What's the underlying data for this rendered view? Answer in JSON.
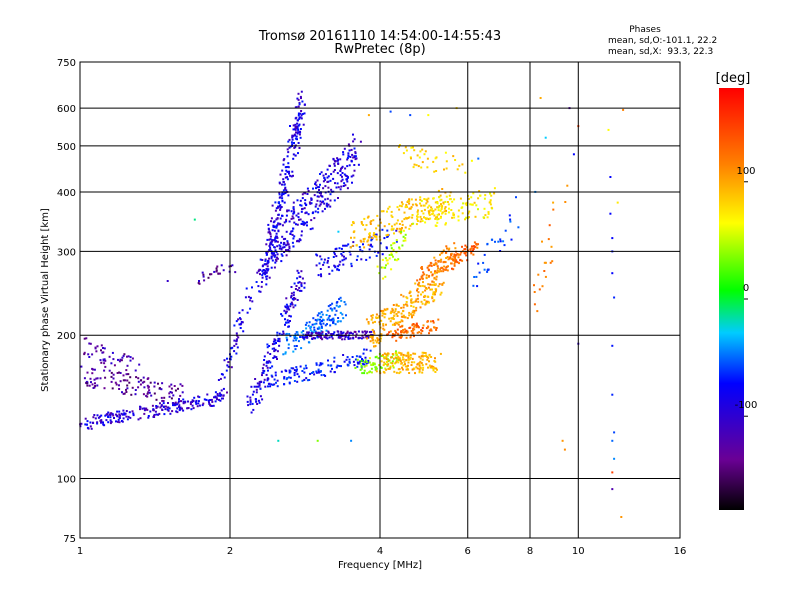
{
  "chart_data": {
    "type": "scatter",
    "title": "Tromsø 20161110 14:54:00-14:55:43",
    "subtitle": "RwPretec (8p)",
    "xlabel": "Frequency [MHz]",
    "ylabel": "Stationary phase Virtual Height [km]",
    "x_scale": "log",
    "y_scale": "log",
    "xlim": [
      1,
      16
    ],
    "ylim": [
      75,
      750
    ],
    "x_ticks": [
      1,
      2,
      4,
      6,
      8,
      10,
      16
    ],
    "y_ticks": [
      75,
      100,
      200,
      300,
      400,
      500,
      600,
      750
    ],
    "grid": true,
    "phase_stats": {
      "heading": "Phases",
      "line_o": "mean, sd,O:-101.1, 22.2",
      "line_x": "mean, sd,X:  93.3, 22.3"
    },
    "colorbar": {
      "label": "[deg]",
      "range": [
        -180,
        180
      ],
      "ticks": [
        -100,
        0,
        100
      ],
      "colormap": "rainbow"
    },
    "clusters": [
      {
        "from": [
          1.0,
          130
        ],
        "to": [
          1.95,
          148
        ],
        "spread": 6,
        "phase": -115,
        "count": 220
      },
      {
        "from": [
          1.0,
          165
        ],
        "to": [
          1.6,
          150
        ],
        "spread": 10,
        "phase": -135,
        "count": 120
      },
      {
        "from": [
          1.0,
          190
        ],
        "to": [
          1.3,
          170
        ],
        "spread": 10,
        "phase": -130,
        "count": 50
      },
      {
        "from": [
          1.7,
          260
        ],
        "to": [
          2.05,
          280
        ],
        "spread": 6,
        "phase": -135,
        "count": 25
      },
      {
        "from": [
          1.9,
          150
        ],
        "to": [
          2.2,
          250
        ],
        "spread": 8,
        "phase": -110,
        "count": 60
      },
      {
        "from": [
          2.3,
          250
        ],
        "to": [
          2.8,
          620
        ],
        "spread": 14,
        "phase": -110,
        "count": 260
      },
      {
        "from": [
          2.4,
          300
        ],
        "to": [
          3.6,
          480
        ],
        "spread": 20,
        "phase": -112,
        "count": 320
      },
      {
        "from": [
          2.2,
          140
        ],
        "to": [
          2.8,
          270
        ],
        "spread": 10,
        "phase": -110,
        "count": 160
      },
      {
        "from": [
          2.6,
          190
        ],
        "to": [
          3.4,
          230
        ],
        "spread": 10,
        "phase": -70,
        "count": 140
      },
      {
        "from": [
          2.4,
          160
        ],
        "to": [
          3.8,
          180
        ],
        "spread": 8,
        "phase": -95,
        "count": 130
      },
      {
        "from": [
          2.8,
          200
        ],
        "to": [
          3.9,
          200
        ],
        "spread": 4,
        "phase": -120,
        "count": 120
      },
      {
        "from": [
          3.0,
          280
        ],
        "to": [
          4.3,
          320
        ],
        "spread": 12,
        "phase": -100,
        "count": 90
      },
      {
        "from": [
          3.6,
          170
        ],
        "to": [
          4.4,
          180
        ],
        "spread": 8,
        "phase": 35,
        "count": 70
      },
      {
        "from": [
          4.0,
          175
        ],
        "to": [
          5.2,
          175
        ],
        "spread": 10,
        "phase": 95,
        "count": 150
      },
      {
        "from": [
          3.8,
          200
        ],
        "to": [
          5.3,
          260
        ],
        "spread": 14,
        "phase": 100,
        "count": 220
      },
      {
        "from": [
          4.2,
          200
        ],
        "to": [
          5.2,
          210
        ],
        "spread": 6,
        "phase": 130,
        "count": 80
      },
      {
        "from": [
          4.8,
          260
        ],
        "to": [
          5.6,
          300
        ],
        "spread": 10,
        "phase": 120,
        "count": 90
      },
      {
        "from": [
          5.5,
          280
        ],
        "to": [
          6.2,
          310
        ],
        "spread": 6,
        "phase": 135,
        "count": 70
      },
      {
        "from": [
          3.5,
          320
        ],
        "to": [
          5.6,
          390
        ],
        "spread": 14,
        "phase": 90,
        "count": 170
      },
      {
        "from": [
          4.8,
          360
        ],
        "to": [
          6.8,
          380
        ],
        "spread": 14,
        "phase": 70,
        "count": 120
      },
      {
        "from": [
          4.4,
          480
        ],
        "to": [
          6.0,
          450
        ],
        "spread": 10,
        "phase": 80,
        "count": 40
      },
      {
        "from": [
          4.0,
          270
        ],
        "to": [
          4.6,
          330
        ],
        "spread": 10,
        "phase": 45,
        "count": 40
      },
      {
        "from": [
          6.0,
          250
        ],
        "to": [
          7.5,
          350
        ],
        "spread": 12,
        "phase": -80,
        "count": 30
      },
      {
        "from": [
          8.0,
          230
        ],
        "to": [
          9.5,
          400
        ],
        "spread": 20,
        "phase": 120,
        "count": 20
      }
    ],
    "scattered_points": [
      [
        11.6,
        430,
        -100
      ],
      [
        11.6,
        360,
        -100
      ],
      [
        11.7,
        320,
        -100
      ],
      [
        11.7,
        300,
        -95
      ],
      [
        11.7,
        270,
        -100
      ],
      [
        11.8,
        240,
        -90
      ],
      [
        11.7,
        190,
        -95
      ],
      [
        11.7,
        150,
        -90
      ],
      [
        11.8,
        125,
        -80
      ],
      [
        11.7,
        120,
        -70
      ],
      [
        11.8,
        110,
        -60
      ],
      [
        11.7,
        103,
        150
      ],
      [
        11.7,
        95,
        -130
      ],
      [
        12.2,
        83,
        110
      ],
      [
        12.3,
        595,
        120
      ],
      [
        10.0,
        550,
        150
      ],
      [
        10.0,
        192,
        -120
      ],
      [
        9.8,
        480,
        -100
      ],
      [
        9.6,
        600,
        -130
      ],
      [
        8.4,
        630,
        100
      ],
      [
        8.6,
        520,
        -40
      ],
      [
        9.3,
        120,
        110
      ],
      [
        9.4,
        115,
        115
      ],
      [
        8.9,
        380,
        100
      ],
      [
        11.5,
        540,
        60
      ],
      [
        12.0,
        380,
        70
      ],
      [
        3.3,
        330,
        -40
      ],
      [
        3.5,
        120,
        -60
      ],
      [
        3.8,
        580,
        100
      ],
      [
        4.2,
        590,
        -80
      ],
      [
        4.6,
        580,
        -80
      ],
      [
        5.0,
        580,
        60
      ],
      [
        2.5,
        120,
        -30
      ],
      [
        3.0,
        120,
        30
      ],
      [
        1.7,
        350,
        -20
      ],
      [
        1.5,
        260,
        -120
      ],
      [
        5.7,
        600,
        80
      ],
      [
        6.3,
        470,
        -70
      ],
      [
        7.5,
        390,
        -80
      ],
      [
        8.2,
        400,
        -60
      ]
    ]
  }
}
